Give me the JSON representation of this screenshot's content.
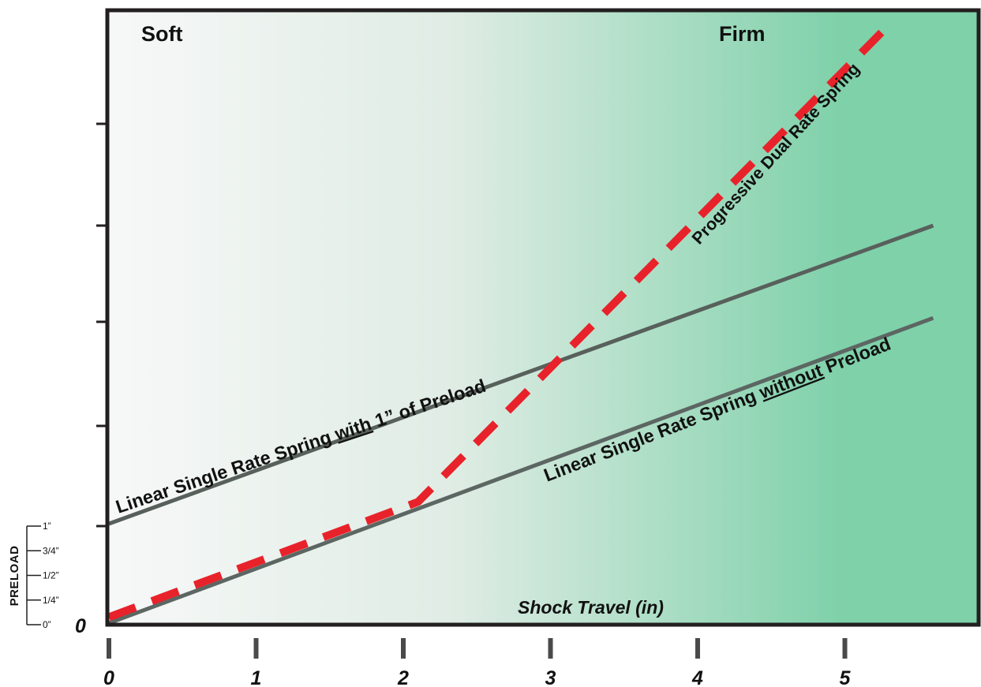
{
  "chart_data": {
    "type": "line",
    "title": "",
    "xlabel": "Shock Travel (in)",
    "ylabel": "",
    "x_ticks": [
      "0",
      "1",
      "2",
      "3",
      "4",
      "5"
    ],
    "y_origin_label": "0",
    "xlim": [
      0,
      5.95
    ],
    "ylim": [
      0,
      6.2
    ],
    "grid": false,
    "zones": {
      "left": "Soft",
      "right": "Firm"
    },
    "background_gradient": [
      "#f7f8f8",
      "#dfece4",
      "#7fd1aa"
    ],
    "series": [
      {
        "name": "Linear Single Rate Spring with 1” of Preload",
        "label_parts": [
          {
            "text": "Linear Single Rate Spring ",
            "underline": false
          },
          {
            "text": "with",
            "underline": true
          },
          {
            "text": " 1” of Preload",
            "underline": false
          }
        ],
        "style": "solid",
        "color": "#58605c",
        "x": [
          0,
          5.6
        ],
        "y": [
          1.0,
          4.0
        ]
      },
      {
        "name": "Linear Single Rate Spring without Preload",
        "label_parts": [
          {
            "text": "Linear Single Rate Spring ",
            "underline": false
          },
          {
            "text": "without",
            "underline": true
          },
          {
            "text": " Preload",
            "underline": false
          }
        ],
        "style": "solid",
        "color": "#5c6662",
        "x": [
          0,
          5.6
        ],
        "y": [
          0,
          3.07
        ]
      },
      {
        "name": "Progressive Dual Rate Spring",
        "label_parts": [
          {
            "text": "Progressive Dual Rate Spring",
            "underline": false
          }
        ],
        "style": "dashed",
        "color": "#e8222a",
        "x": [
          0,
          2.1,
          5.3
        ],
        "y": [
          0.06,
          1.22,
          6.02
        ]
      }
    ],
    "preload_scale": {
      "title": "PRELOAD",
      "labels": [
        "1”",
        "3/4”",
        "1/2”",
        "1/4”",
        "0”"
      ],
      "values": [
        1,
        0.75,
        0.5,
        0.25,
        0
      ]
    }
  }
}
